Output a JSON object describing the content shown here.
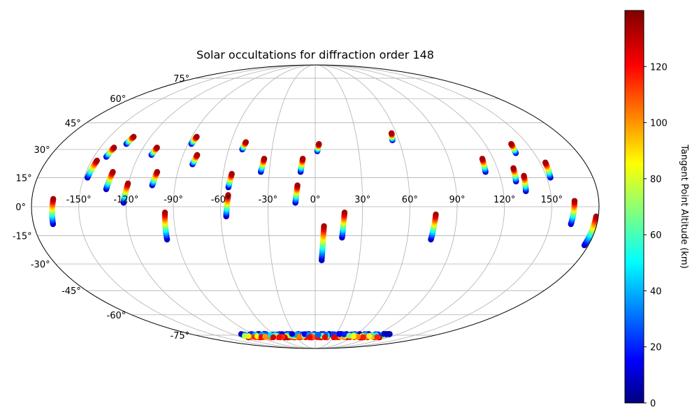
{
  "chart_data": {
    "type": "scatter",
    "projection": "mollweide",
    "title": "Solar occultations for diffraction order 148",
    "grid": true,
    "lon_ticks": [
      "-150°",
      "-120°",
      "-90°",
      "-60°",
      "-30°",
      "0°",
      "30°",
      "60°",
      "90°",
      "120°",
      "150°"
    ],
    "lat_ticks": [
      "-75°",
      "-60°",
      "-45°",
      "-30°",
      "-15°",
      "0°",
      "15°",
      "30°",
      "45°",
      "60°",
      "75°"
    ],
    "colorbar": {
      "label": "Tangent Point Altitude (km)",
      "colormap": "jet",
      "range": [
        0,
        140
      ],
      "ticks": [
        "0",
        "20",
        "40",
        "60",
        "80",
        "100",
        "120"
      ]
    },
    "occultations": [
      {
        "lon": -167,
        "lat_top": 4,
        "lat_bottom": -9
      },
      {
        "lon": -147,
        "lat_top": 24,
        "lat_bottom": 15
      },
      {
        "lon": -141,
        "lat_top": 31,
        "lat_bottom": 26
      },
      {
        "lon": -133,
        "lat_top": 37,
        "lat_bottom": 33
      },
      {
        "lon": -133,
        "lat_top": 18,
        "lat_bottom": 9
      },
      {
        "lon": -121,
        "lat_top": 12,
        "lat_bottom": 2
      },
      {
        "lon": -111,
        "lat_top": 31,
        "lat_bottom": 27
      },
      {
        "lon": -104,
        "lat_top": 18,
        "lat_bottom": 11
      },
      {
        "lon": -96,
        "lat_top": -3,
        "lat_bottom": -17
      },
      {
        "lon": -87,
        "lat_top": 37,
        "lat_bottom": 33
      },
      {
        "lon": -81,
        "lat_top": 27,
        "lat_bottom": 22
      },
      {
        "lon": -55,
        "lat_top": 17,
        "lat_bottom": 10
      },
      {
        "lon": -56,
        "lat_top": 6,
        "lat_bottom": -5
      },
      {
        "lon": -50,
        "lat_top": 34,
        "lat_bottom": 30
      },
      {
        "lon": -35,
        "lat_top": 25,
        "lat_bottom": 18
      },
      {
        "lon": -12,
        "lat_top": 11,
        "lat_bottom": 2
      },
      {
        "lon": -9,
        "lat_top": 25,
        "lat_bottom": 18
      },
      {
        "lon": 2,
        "lat_top": 33,
        "lat_bottom": 29
      },
      {
        "lon": 5,
        "lat_top": -10,
        "lat_bottom": -28
      },
      {
        "lon": 18,
        "lat_top": -3,
        "lat_bottom": -16
      },
      {
        "lon": 56,
        "lat_top": 39,
        "lat_bottom": 35
      },
      {
        "lon": 76,
        "lat_top": -4,
        "lat_bottom": -17
      },
      {
        "lon": 112,
        "lat_top": 25,
        "lat_bottom": 18
      },
      {
        "lon": 130,
        "lat_top": 20,
        "lat_bottom": 13
      },
      {
        "lon": 138,
        "lat_top": 33,
        "lat_bottom": 28
      },
      {
        "lon": 135,
        "lat_top": 16,
        "lat_bottom": 8
      },
      {
        "lon": 153,
        "lat_top": 23,
        "lat_bottom": 15
      },
      {
        "lon": 164,
        "lat_top": 3,
        "lat_bottom": -9
      },
      {
        "lon": 178,
        "lat_top": -5,
        "lat_bottom": -20
      }
    ],
    "south_polar_band": {
      "lon_min": -110,
      "lon_max": 110,
      "lat_min": -77,
      "lat_max": -74
    }
  }
}
